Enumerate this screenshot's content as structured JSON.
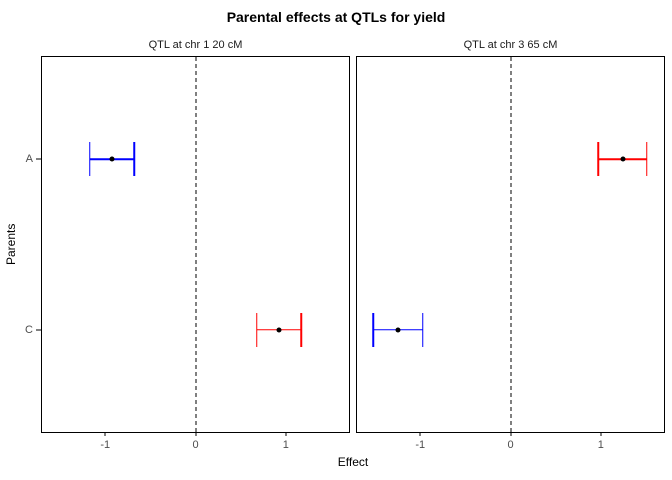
{
  "chart_data": {
    "type": "scatter",
    "subtype": "faceted-dotplot-with-error-bars",
    "title": "Parental effects at QTLs for yield",
    "xlabel": "Effect",
    "ylabel": "Parents",
    "xlim": [
      -1.7,
      1.7
    ],
    "x_ticks": [
      -1,
      0,
      1
    ],
    "y_categories": [
      "A",
      "C"
    ],
    "reference_line_x": 0,
    "grid": false,
    "legend": "none",
    "colors": {
      "negative_series": "#0000FF",
      "positive_series": "#FF0000",
      "point": "#000000",
      "axis_text": "#4d4d4d",
      "border": "#000000"
    },
    "facets": [
      {
        "label": "QTL at chr 1 20 cM",
        "points": [
          {
            "parent": "A",
            "estimate": -0.92,
            "ci_low": -1.17,
            "ci_high": -0.68,
            "color": "#0000FF"
          },
          {
            "parent": "C",
            "estimate": 0.92,
            "ci_low": 0.68,
            "ci_high": 1.17,
            "color": "#FF0000"
          }
        ]
      },
      {
        "label": "QTL at chr 3 65 cM",
        "points": [
          {
            "parent": "A",
            "estimate": 1.25,
            "ci_low": 0.97,
            "ci_high": 1.51,
            "color": "#FF0000"
          },
          {
            "parent": "C",
            "estimate": -1.25,
            "ci_low": -1.52,
            "ci_high": -0.97,
            "color": "#0000FF"
          }
        ]
      }
    ]
  }
}
